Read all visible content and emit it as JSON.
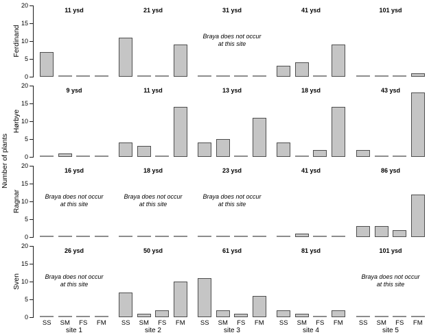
{
  "chart_data": {
    "type": "bar",
    "ylabel": "Number of plants",
    "ylim": [
      0,
      20
    ],
    "yticks": [
      0,
      5,
      10,
      15,
      20
    ],
    "grid": false,
    "legend": "none",
    "categories": [
      "SS",
      "SM",
      "FS",
      "FM"
    ],
    "site_labels": [
      "site 1",
      "site 2",
      "site 3",
      "site 4",
      "site 5"
    ],
    "absent_note": "Braya does not occur at this site",
    "absent_note_lines": [
      "Braya does not occur",
      "at this site"
    ],
    "rows": [
      {
        "label": "Ferdinand",
        "panels": [
          {
            "title": "11 ysd",
            "values": [
              7,
              0,
              0,
              0
            ],
            "absent": false
          },
          {
            "title": "21 ysd",
            "values": [
              11,
              0,
              0,
              9
            ],
            "absent": false
          },
          {
            "title": "31 ysd",
            "values": [
              0,
              0,
              0,
              0
            ],
            "absent": true
          },
          {
            "title": "41 ysd",
            "values": [
              3,
              4,
              0,
              9
            ],
            "absent": false
          },
          {
            "title": "101 ysd",
            "values": [
              0,
              0,
              0,
              1
            ],
            "absent": false
          }
        ]
      },
      {
        "label": "Hørbye",
        "panels": [
          {
            "title": "9 ysd",
            "values": [
              0,
              1,
              0,
              0
            ],
            "absent": false
          },
          {
            "title": "11 ysd",
            "values": [
              4,
              3,
              0,
              14
            ],
            "absent": false
          },
          {
            "title": "13 ysd",
            "values": [
              4,
              5,
              0,
              11
            ],
            "absent": false
          },
          {
            "title": "18 ysd",
            "values": [
              4,
              0,
              2,
              14
            ],
            "absent": false
          },
          {
            "title": "43 ysd",
            "values": [
              2,
              0,
              0,
              18
            ],
            "absent": false
          }
        ]
      },
      {
        "label": "Ragnar",
        "panels": [
          {
            "title": "16 ysd",
            "values": [
              0,
              0,
              0,
              0
            ],
            "absent": true
          },
          {
            "title": "18 ysd",
            "values": [
              0,
              0,
              0,
              0
            ],
            "absent": true
          },
          {
            "title": "23 ysd",
            "values": [
              0,
              0,
              0,
              0
            ],
            "absent": true
          },
          {
            "title": "41 ysd",
            "values": [
              0,
              1,
              0,
              0
            ],
            "absent": false
          },
          {
            "title": "86 ysd",
            "values": [
              3,
              3,
              2,
              12
            ],
            "absent": false
          }
        ]
      },
      {
        "label": "Sven",
        "panels": [
          {
            "title": "26 ysd",
            "values": [
              0,
              0,
              0,
              0
            ],
            "absent": true
          },
          {
            "title": "50 ysd",
            "values": [
              7,
              1,
              2,
              10
            ],
            "absent": false
          },
          {
            "title": "61 ysd",
            "values": [
              11,
              2,
              1,
              6
            ],
            "absent": false
          },
          {
            "title": "81 ysd",
            "values": [
              2,
              1,
              0,
              2
            ],
            "absent": false
          },
          {
            "title": "101 ysd",
            "values": [
              0,
              0,
              0,
              0
            ],
            "absent": true
          }
        ]
      }
    ],
    "colors": {
      "bar_fill": "#c5c5c5",
      "bar_border": "#4d4d4d",
      "zero_dash": "#8c8c8c",
      "axis": "#1a1a1a",
      "text": "#000000"
    }
  }
}
